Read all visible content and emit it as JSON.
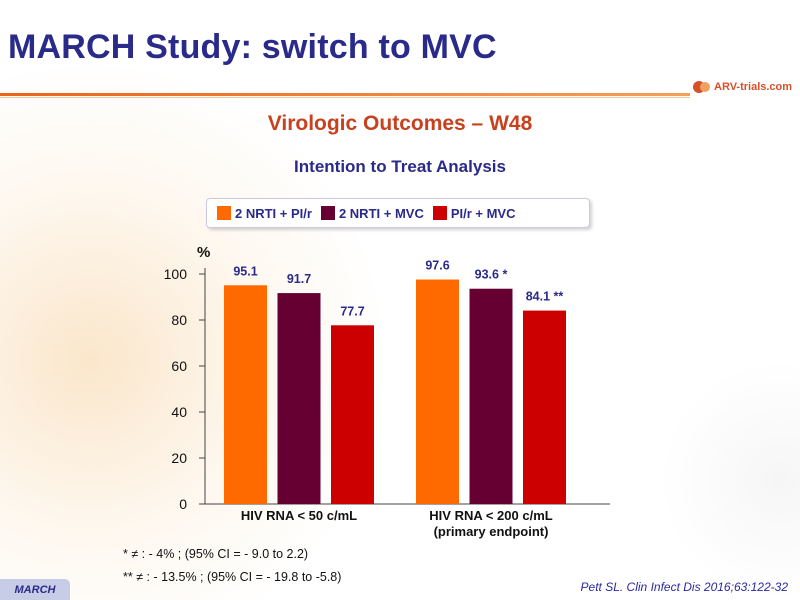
{
  "slide": {
    "title": "MARCH Study: switch to MVC",
    "subtitle": "Virologic Outcomes – W48",
    "subtitle2": "Intention to Treat Analysis",
    "logo_text": "ARV-trials.com",
    "footnotes": [
      "* ≠ : - 4% ; (95% CI = - 9.0 to 2.2)",
      "** ≠ : - 13.5% ; (95% CI = - 19.8 to -5.8)"
    ],
    "tag": "MARCH",
    "citation": "Pett SL. Clin Infect Dis 2016;63:122-32"
  },
  "chart_data": {
    "type": "bar",
    "ylabel": "%",
    "ylim": [
      0,
      100
    ],
    "yticks": [
      0,
      20,
      40,
      60,
      80,
      100
    ],
    "grid": false,
    "legend_position": "top",
    "categories": [
      [
        "HIV RNA < 50 c/mL"
      ],
      [
        "HIV RNA < 200 c/mL",
        "(primary endpoint)"
      ]
    ],
    "series": [
      {
        "name": "2 NRTI + PI/r",
        "color": "#ff6a00",
        "values": [
          95.1,
          97.6
        ],
        "labels": [
          "95.1",
          "97.6"
        ]
      },
      {
        "name": "2 NRTI + MVC",
        "color": "#660033",
        "values": [
          91.7,
          93.6
        ],
        "labels": [
          "91.7",
          "93.6 *"
        ]
      },
      {
        "name": "PI/r + MVC",
        "color": "#cc0000",
        "values": [
          77.7,
          84.1
        ],
        "labels": [
          "77.7",
          "84.1 **"
        ]
      }
    ]
  }
}
